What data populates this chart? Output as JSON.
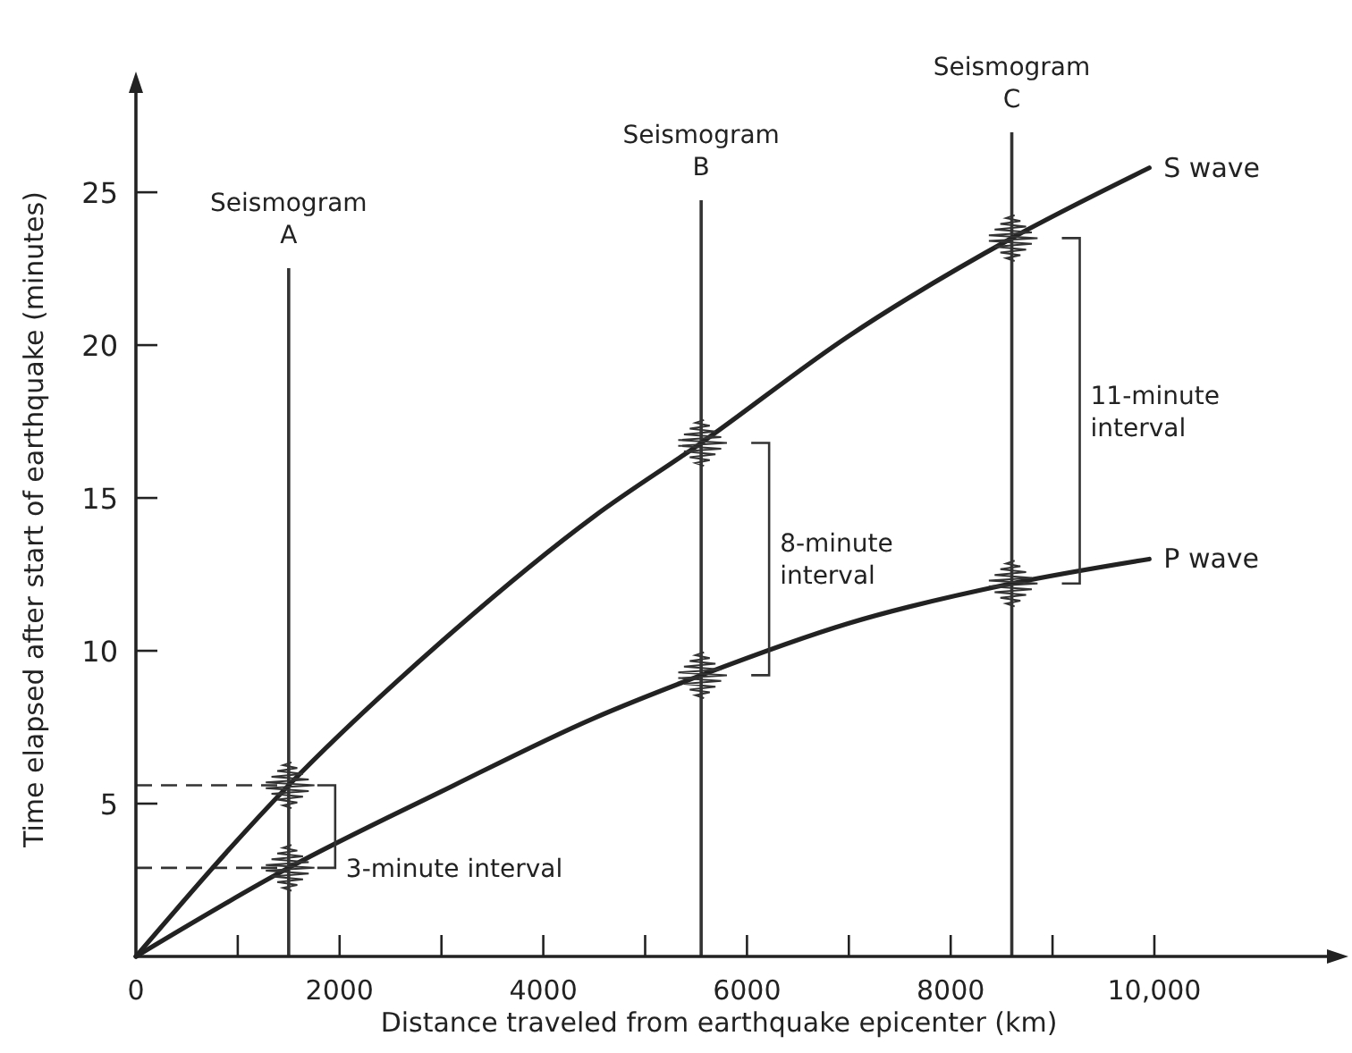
{
  "chart_data": {
    "type": "line",
    "xlabel": "Distance traveled from earthquake epicenter (km)",
    "ylabel": "Time elapsed after start of earthquake (minutes)",
    "xlim": [
      0,
      11800
    ],
    "ylim": [
      0,
      28.6
    ],
    "xticks": [
      0,
      {
        "value": 1000,
        "label": null
      },
      2000,
      {
        "value": 3000,
        "label": null
      },
      4000,
      {
        "value": 5000,
        "label": null
      },
      6000,
      {
        "value": 7000,
        "label": null
      },
      8000,
      {
        "value": 9000,
        "label": null
      },
      {
        "value": 10000,
        "label": "10,000"
      }
    ],
    "yticks": [
      5,
      10,
      15,
      20,
      25
    ],
    "grid": false,
    "marker": "none",
    "line_style": "solid",
    "series": [
      {
        "name": "S wave",
        "color": "#222222",
        "x": [
          0,
          1500,
          3000,
          4500,
          5550,
          7000,
          8600,
          9950
        ],
        "values": [
          0,
          5.6,
          10.3,
          14.4,
          16.8,
          20.3,
          23.5,
          25.8
        ]
      },
      {
        "name": "P wave",
        "color": "#222222",
        "x": [
          0,
          1500,
          3000,
          4500,
          5550,
          7000,
          8600,
          9950
        ],
        "values": [
          0,
          2.9,
          5.4,
          7.8,
          9.2,
          10.9,
          12.2,
          13.0
        ]
      }
    ],
    "ref_lines": [
      {
        "axis": "x",
        "value": 1500,
        "label": "Seismogram A",
        "color": "#333333"
      },
      {
        "axis": "x",
        "value": 5550,
        "label": "Seismogram B",
        "color": "#333333"
      },
      {
        "axis": "x",
        "value": 8600,
        "label": "Seismogram C",
        "color": "#333333"
      },
      {
        "axis": "y",
        "value": 5.6,
        "label": null,
        "color": "#333333",
        "line_style": "dashed"
      },
      {
        "axis": "y",
        "value": 2.9,
        "label": null,
        "color": "#333333",
        "line_style": "dashed"
      }
    ],
    "annotations": [
      {
        "text": "3-minute interval",
        "x": 1500,
        "y": 2.9
      },
      "8-minute interval",
      "11-minute interval"
    ]
  }
}
